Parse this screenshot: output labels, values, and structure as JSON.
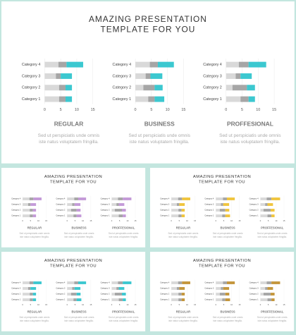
{
  "title_lines": [
    "AMAZING PRESENTATION",
    "TEMPLATE FOR YOU"
  ],
  "description_lines": [
    "Sed ut perspiciatis unde omnis",
    "iste natus voluptatem fringilla."
  ],
  "slides": [
    {
      "accent": "#3cc8d0"
    },
    {
      "accent": "#c49ad8"
    },
    {
      "accent": "#f0c53e"
    },
    {
      "accent": "#3cc8d0"
    },
    {
      "accent": "#c4963c"
    }
  ],
  "chart_data": [
    {
      "type": "bar",
      "label": "REGULAR",
      "categories": [
        "Category 1",
        "Category 2",
        "Category 3",
        "Category 4"
      ],
      "series": [
        {
          "color": "#d9d9d9",
          "values": [
            4.5,
            4.5,
            3.5,
            4.3
          ]
        },
        {
          "color": "#a6a6a6",
          "values": [
            2,
            2,
            1.5,
            2.5
          ]
        },
        {
          "values": [
            2,
            2,
            3.5,
            5.2
          ]
        }
      ],
      "xlim": [
        0,
        15
      ],
      "xticks": [
        0,
        5,
        10,
        15
      ],
      "grid": true
    },
    {
      "type": "bar",
      "label": "BUSINESS",
      "categories": [
        "Category 1",
        "Category 2",
        "Category 3",
        "Category 4"
      ],
      "series": [
        {
          "color": "#d9d9d9",
          "values": [
            4,
            2.5,
            3.2,
            4.5
          ]
        },
        {
          "color": "#a6a6a6",
          "values": [
            2,
            3.5,
            1.5,
            2.5
          ]
        },
        {
          "values": [
            3,
            2.5,
            3.7,
            5
          ]
        }
      ],
      "xlim": [
        0,
        15
      ],
      "xticks": [
        0,
        5,
        10,
        15
      ],
      "grid": true
    },
    {
      "type": "bar",
      "label": "PROFFESIONAL",
      "categories": [
        "Category 1",
        "Category 2",
        "Category 3",
        "Category 4"
      ],
      "series": [
        {
          "color": "#d9d9d9",
          "values": [
            4.5,
            2,
            3,
            4
          ]
        },
        {
          "color": "#a6a6a6",
          "values": [
            2.5,
            4.5,
            1.5,
            3
          ]
        },
        {
          "values": [
            2,
            2.5,
            3.5,
            5.5
          ]
        }
      ],
      "xlim": [
        0,
        15
      ],
      "xticks": [
        0,
        5,
        10,
        15
      ],
      "grid": true
    }
  ]
}
